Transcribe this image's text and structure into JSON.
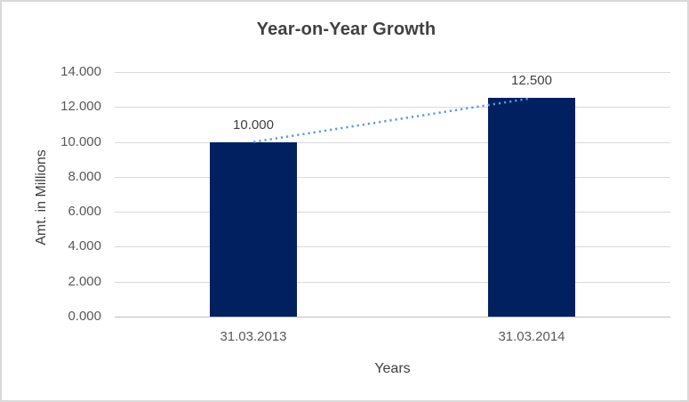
{
  "chart_data": {
    "type": "bar",
    "title": "Year-on-Year Growth",
    "xlabel": "Years",
    "ylabel": "Amt. in Millions",
    "categories": [
      "31.03.2013",
      "31.03.2014"
    ],
    "values": [
      10000,
      12500
    ],
    "value_labels": [
      "10.000",
      "12.500"
    ],
    "ylim": [
      0,
      14000
    ],
    "ytick_step": 2000,
    "ytick_labels": [
      "0.000",
      "2.000",
      "4.000",
      "6.000",
      "8.000",
      "10.000",
      "12.000",
      "14.000"
    ],
    "grid": "horizontal",
    "legend": "none",
    "trendline": {
      "type": "linear",
      "style": "dotted",
      "from_value": 10000,
      "to_value": 12500
    }
  },
  "colors": {
    "bar": "#002060",
    "trendline": "#5B9BD5",
    "gridline": "#D9D9D9",
    "axis_line": "#BFBFBF",
    "title": "#404040",
    "tick_label": "#595959",
    "border": "#D9D9D9",
    "background": "#FFFFFF"
  }
}
